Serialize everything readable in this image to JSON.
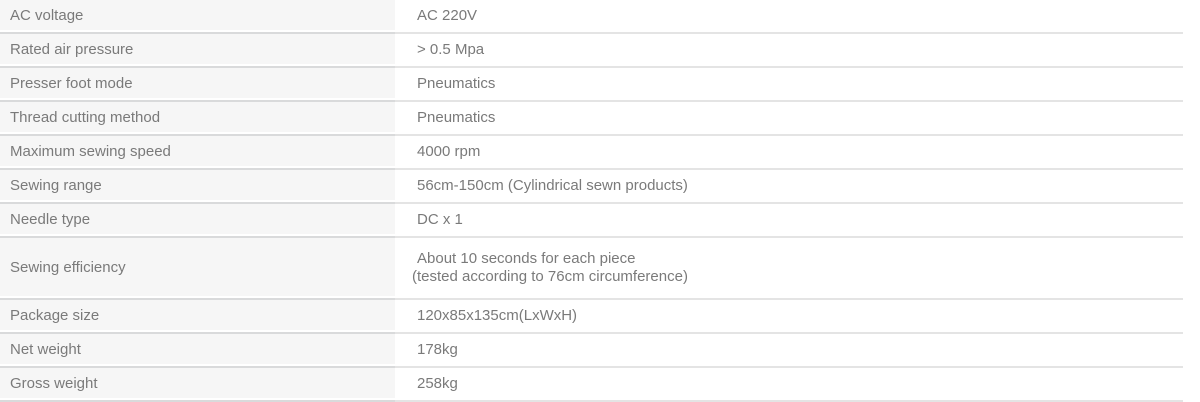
{
  "table": {
    "rows": [
      {
        "label": "AC voltage",
        "value": "AC 220V"
      },
      {
        "label": "Rated air pressure",
        "value": "> 0.5 Mpa"
      },
      {
        "label": "Presser foot mode",
        "value": "Pneumatics"
      },
      {
        "label": "Thread cutting method",
        "value": "Pneumatics"
      },
      {
        "label": "Maximum sewing speed",
        "value": "4000 rpm"
      },
      {
        "label": "Sewing range",
        "value": "56cm-150cm (Cylindrical sewn products)"
      },
      {
        "label": "Needle type",
        "value": "DC x 1"
      },
      {
        "label": "Sewing efficiency",
        "value_lines": [
          "About 10 seconds for each piece",
          "(tested according to 76cm circumference)"
        ]
      },
      {
        "label": "Package size",
        "value": "120x85x135cm(LxWxH)"
      },
      {
        "label": "Net weight",
        "value": "178kg"
      },
      {
        "label": "Gross weight",
        "value": "258kg"
      }
    ]
  },
  "colors": {
    "label_cell_background": "#f6f6f6",
    "value_cell_background": "#ffffff",
    "divider": "#dddddd",
    "text": "#7a7a7a"
  }
}
